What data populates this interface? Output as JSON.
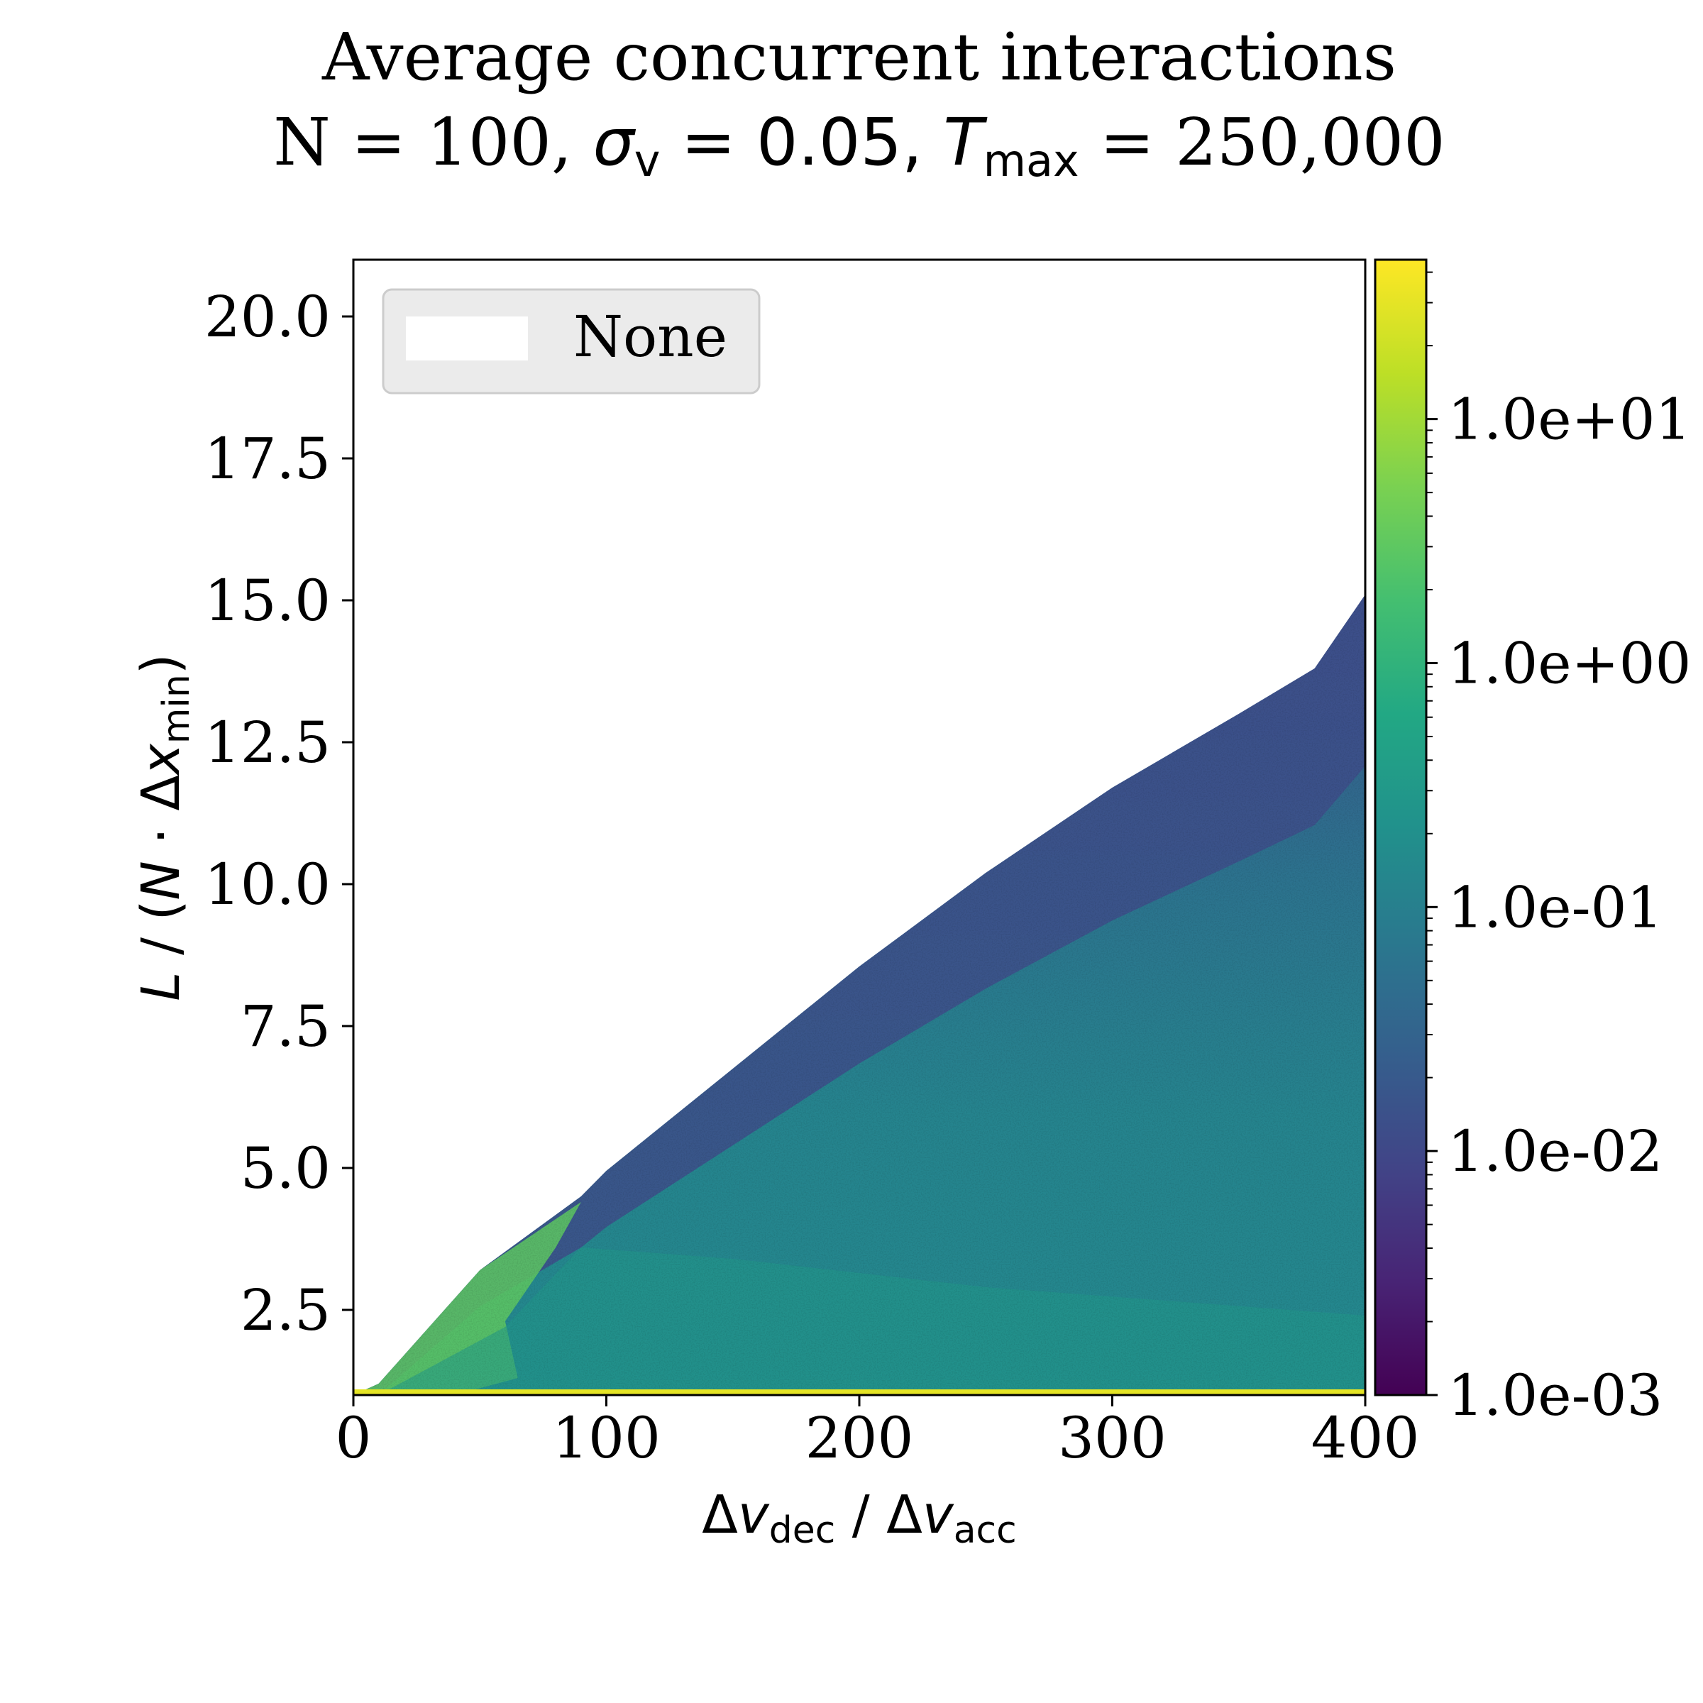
{
  "chart_data": {
    "type": "heatmap",
    "title": "Average concurrent interactions",
    "subtitle": {
      "n_part": "N = 100, ",
      "sigma_symbol": "σ",
      "sigma_sub": "v",
      "sigma_value": " = 0.05, ",
      "t_symbol": "T",
      "t_sub": "max",
      "t_value": " = 250,000"
    },
    "xlabel": {
      "delta": "Δ",
      "v1": "v",
      "sub1": "dec",
      "sep": " / Δ",
      "v2": "v",
      "sub2": "acc"
    },
    "ylabel": {
      "L": "L",
      "mid": " / (",
      "N": "N",
      "dot": " · Δ",
      "x": "x",
      "sub": "min",
      "close": ")"
    },
    "xlim": [
      0,
      400
    ],
    "ylim": [
      1,
      21
    ],
    "x_ticks": [
      0,
      100,
      200,
      300,
      400
    ],
    "x_tick_labels": [
      "0",
      "100",
      "200",
      "300",
      "400"
    ],
    "y_ticks": [
      2.5,
      5.0,
      7.5,
      10.0,
      12.5,
      15.0,
      17.5,
      20.0
    ],
    "y_tick_labels": [
      "2.5",
      "5.0",
      "7.5",
      "10.0",
      "12.5",
      "15.0",
      "17.5",
      "20.0"
    ],
    "colorbar": {
      "scale": "log",
      "colormap": "viridis",
      "range": [
        0.001,
        45
      ],
      "ticks": [
        0.001,
        0.01,
        0.1,
        1,
        10
      ],
      "tick_labels": [
        "1.0e-03",
        "1.0e-02",
        "1.0e-01",
        "1.0e+00",
        "1.0e+01"
      ]
    },
    "legend": {
      "placement": "top-left",
      "entries": [
        {
          "label": "None",
          "color": "#ffffff"
        }
      ]
    },
    "data_region": {
      "boundary": [
        [
          0,
          1.0
        ],
        [
          10,
          1.2
        ],
        [
          50,
          3.2
        ],
        [
          90,
          4.5
        ],
        [
          100,
          4.95
        ],
        [
          150,
          6.75
        ],
        [
          200,
          8.55
        ],
        [
          250,
          10.2
        ],
        [
          300,
          11.7
        ],
        [
          350,
          13.0
        ],
        [
          380,
          13.8
        ],
        [
          400,
          15.1
        ]
      ],
      "bottom_band_value": 30,
      "region_values": [
        {
          "region": "near upper boundary",
          "value": 0.012
        },
        {
          "region": "upper-middle",
          "value": 0.05
        },
        {
          "region": "bulk",
          "value": 0.2
        },
        {
          "region": "near bottom",
          "value": 0.3
        },
        {
          "region": "left wedge x<100",
          "value": 3
        }
      ]
    }
  }
}
